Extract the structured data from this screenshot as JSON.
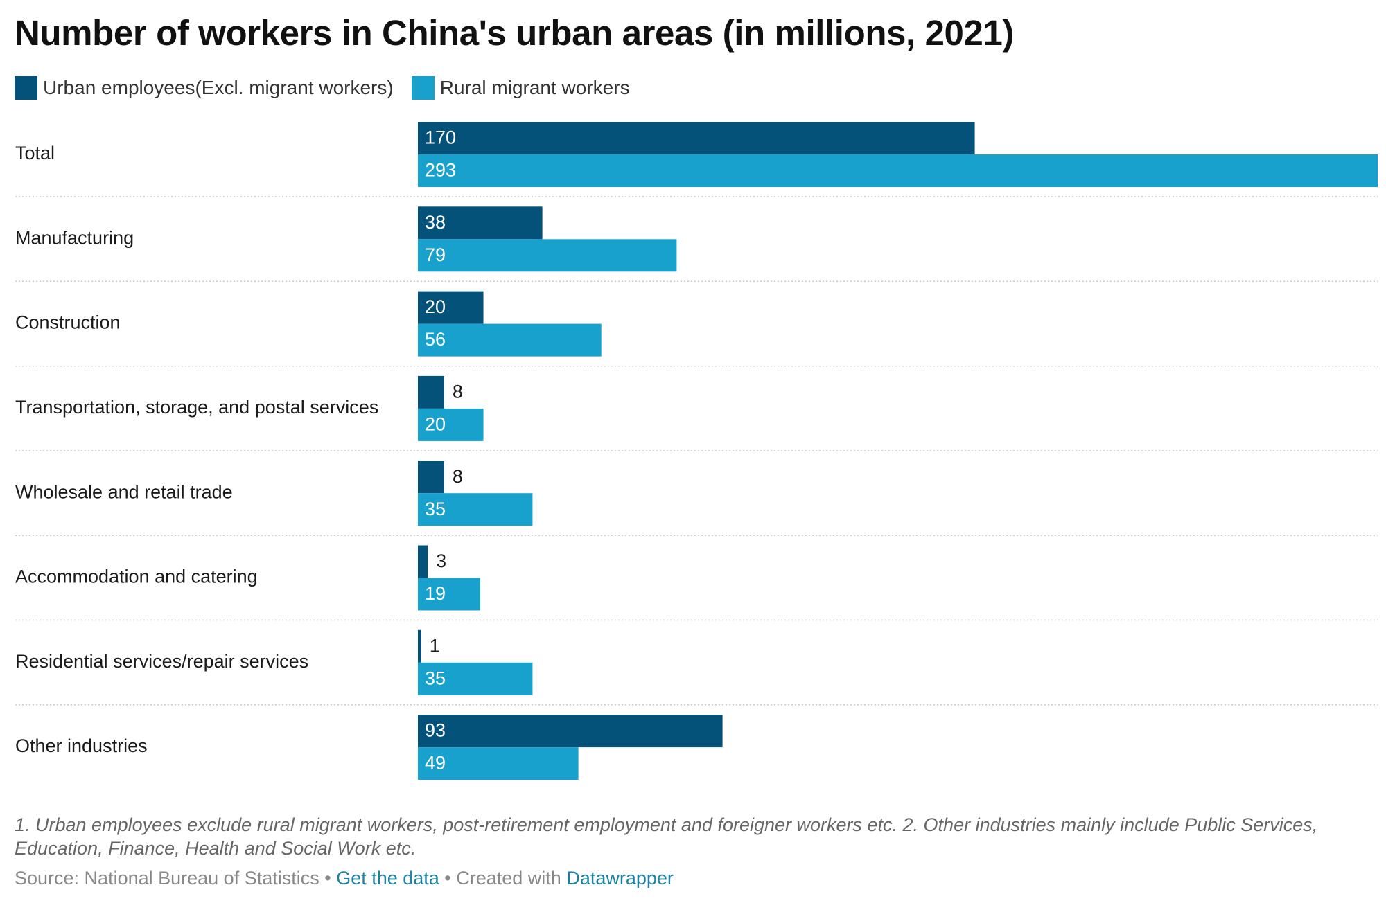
{
  "title": "Number of workers in China's urban areas (in millions, 2021)",
  "legend": [
    {
      "label": "Urban employees(Excl. migrant workers)",
      "color": "#04527a"
    },
    {
      "label": "Rural migrant workers",
      "color": "#18a1cd"
    }
  ],
  "chart_data": {
    "type": "bar",
    "orientation": "horizontal",
    "title": "Number of workers in China's urban areas (in millions, 2021)",
    "categories": [
      "Total",
      "Manufacturing",
      "Construction",
      "Transportation, storage, and postal services",
      "Wholesale and retail trade",
      "Accommodation and catering",
      "Residential services/repair services",
      "Other industries"
    ],
    "series": [
      {
        "name": "Urban employees(Excl. migrant workers)",
        "color": "#04527a",
        "values": [
          170,
          38,
          20,
          8,
          8,
          3,
          1,
          93
        ]
      },
      {
        "name": "Rural migrant workers",
        "color": "#18a1cd",
        "values": [
          293,
          79,
          56,
          20,
          35,
          19,
          35,
          49
        ]
      }
    ],
    "xlim": [
      0,
      293
    ],
    "grid": false,
    "legend_position": "top-left",
    "data_labels": true
  },
  "footnote": "1. Urban employees exclude rural migrant workers, post-retirement employment and foreigner workers etc. 2. Other industries mainly include Public Services, Education, Finance, Health and Social Work etc.",
  "source": {
    "prefix": "Source: National Bureau of Statistics • ",
    "data_link": "Get the data",
    "middle": " • Created with ",
    "tool_link": "Datawrapper"
  }
}
